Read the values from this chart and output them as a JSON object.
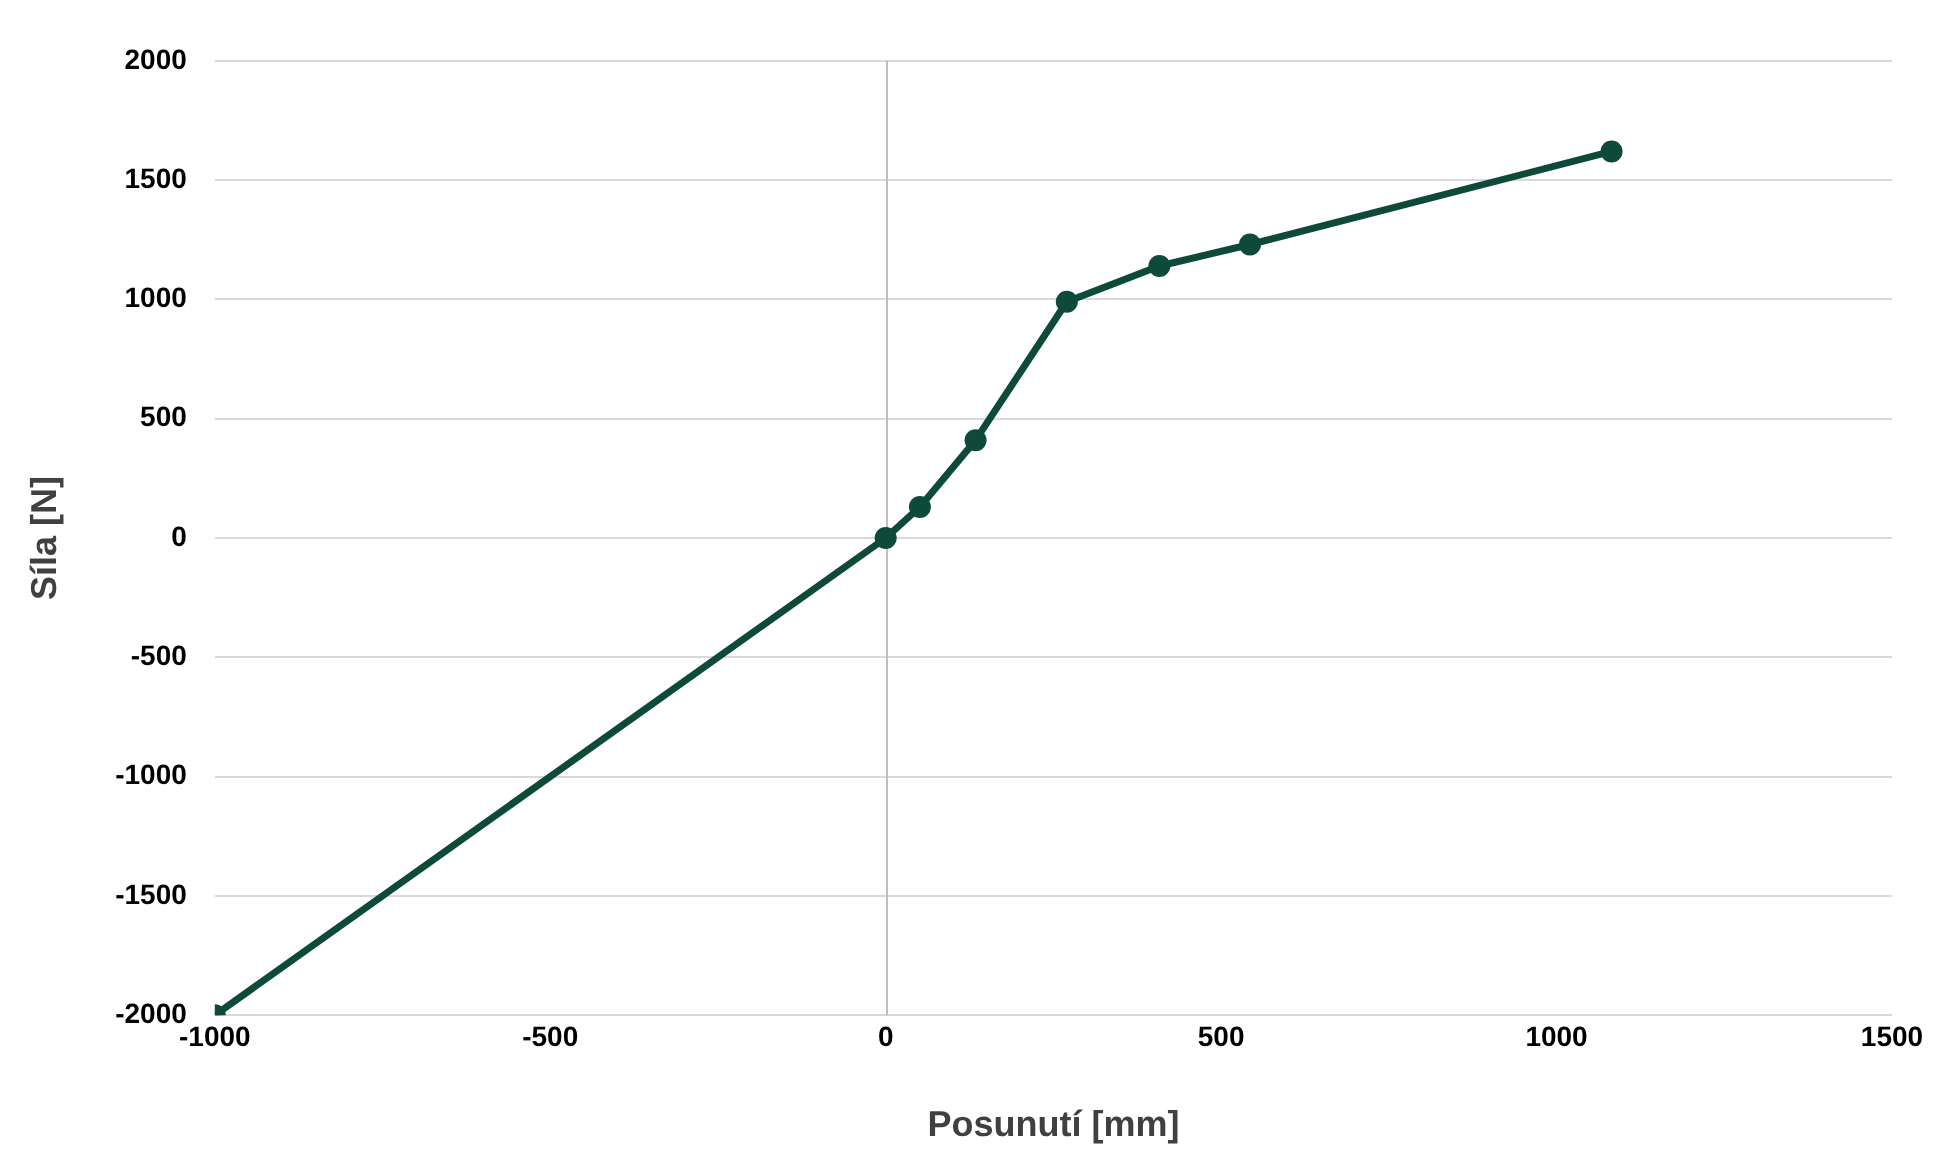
{
  "chart_data": {
    "type": "line",
    "xlabel": "Posunutí [mm]",
    "ylabel": "Síla [N]",
    "x": [
      -1000,
      0,
      51,
      134,
      270,
      408,
      543,
      1082
    ],
    "series": [
      {
        "color": "#0e4a3a",
        "values": [
          -2000,
          0,
          130,
          410,
          990,
          1140,
          1230,
          1620
        ]
      }
    ],
    "xlim": [
      -1000,
      1500
    ],
    "xticks": [
      -1000,
      -500,
      0,
      500,
      1000,
      1500
    ],
    "ylim": [
      -2000,
      2000
    ],
    "yticks": [
      -2000,
      -1500,
      -1000,
      -500,
      0,
      500,
      1000,
      1500,
      2000
    ],
    "grid": "y",
    "marker": "circle",
    "line_style": "solid",
    "legend": false
  }
}
